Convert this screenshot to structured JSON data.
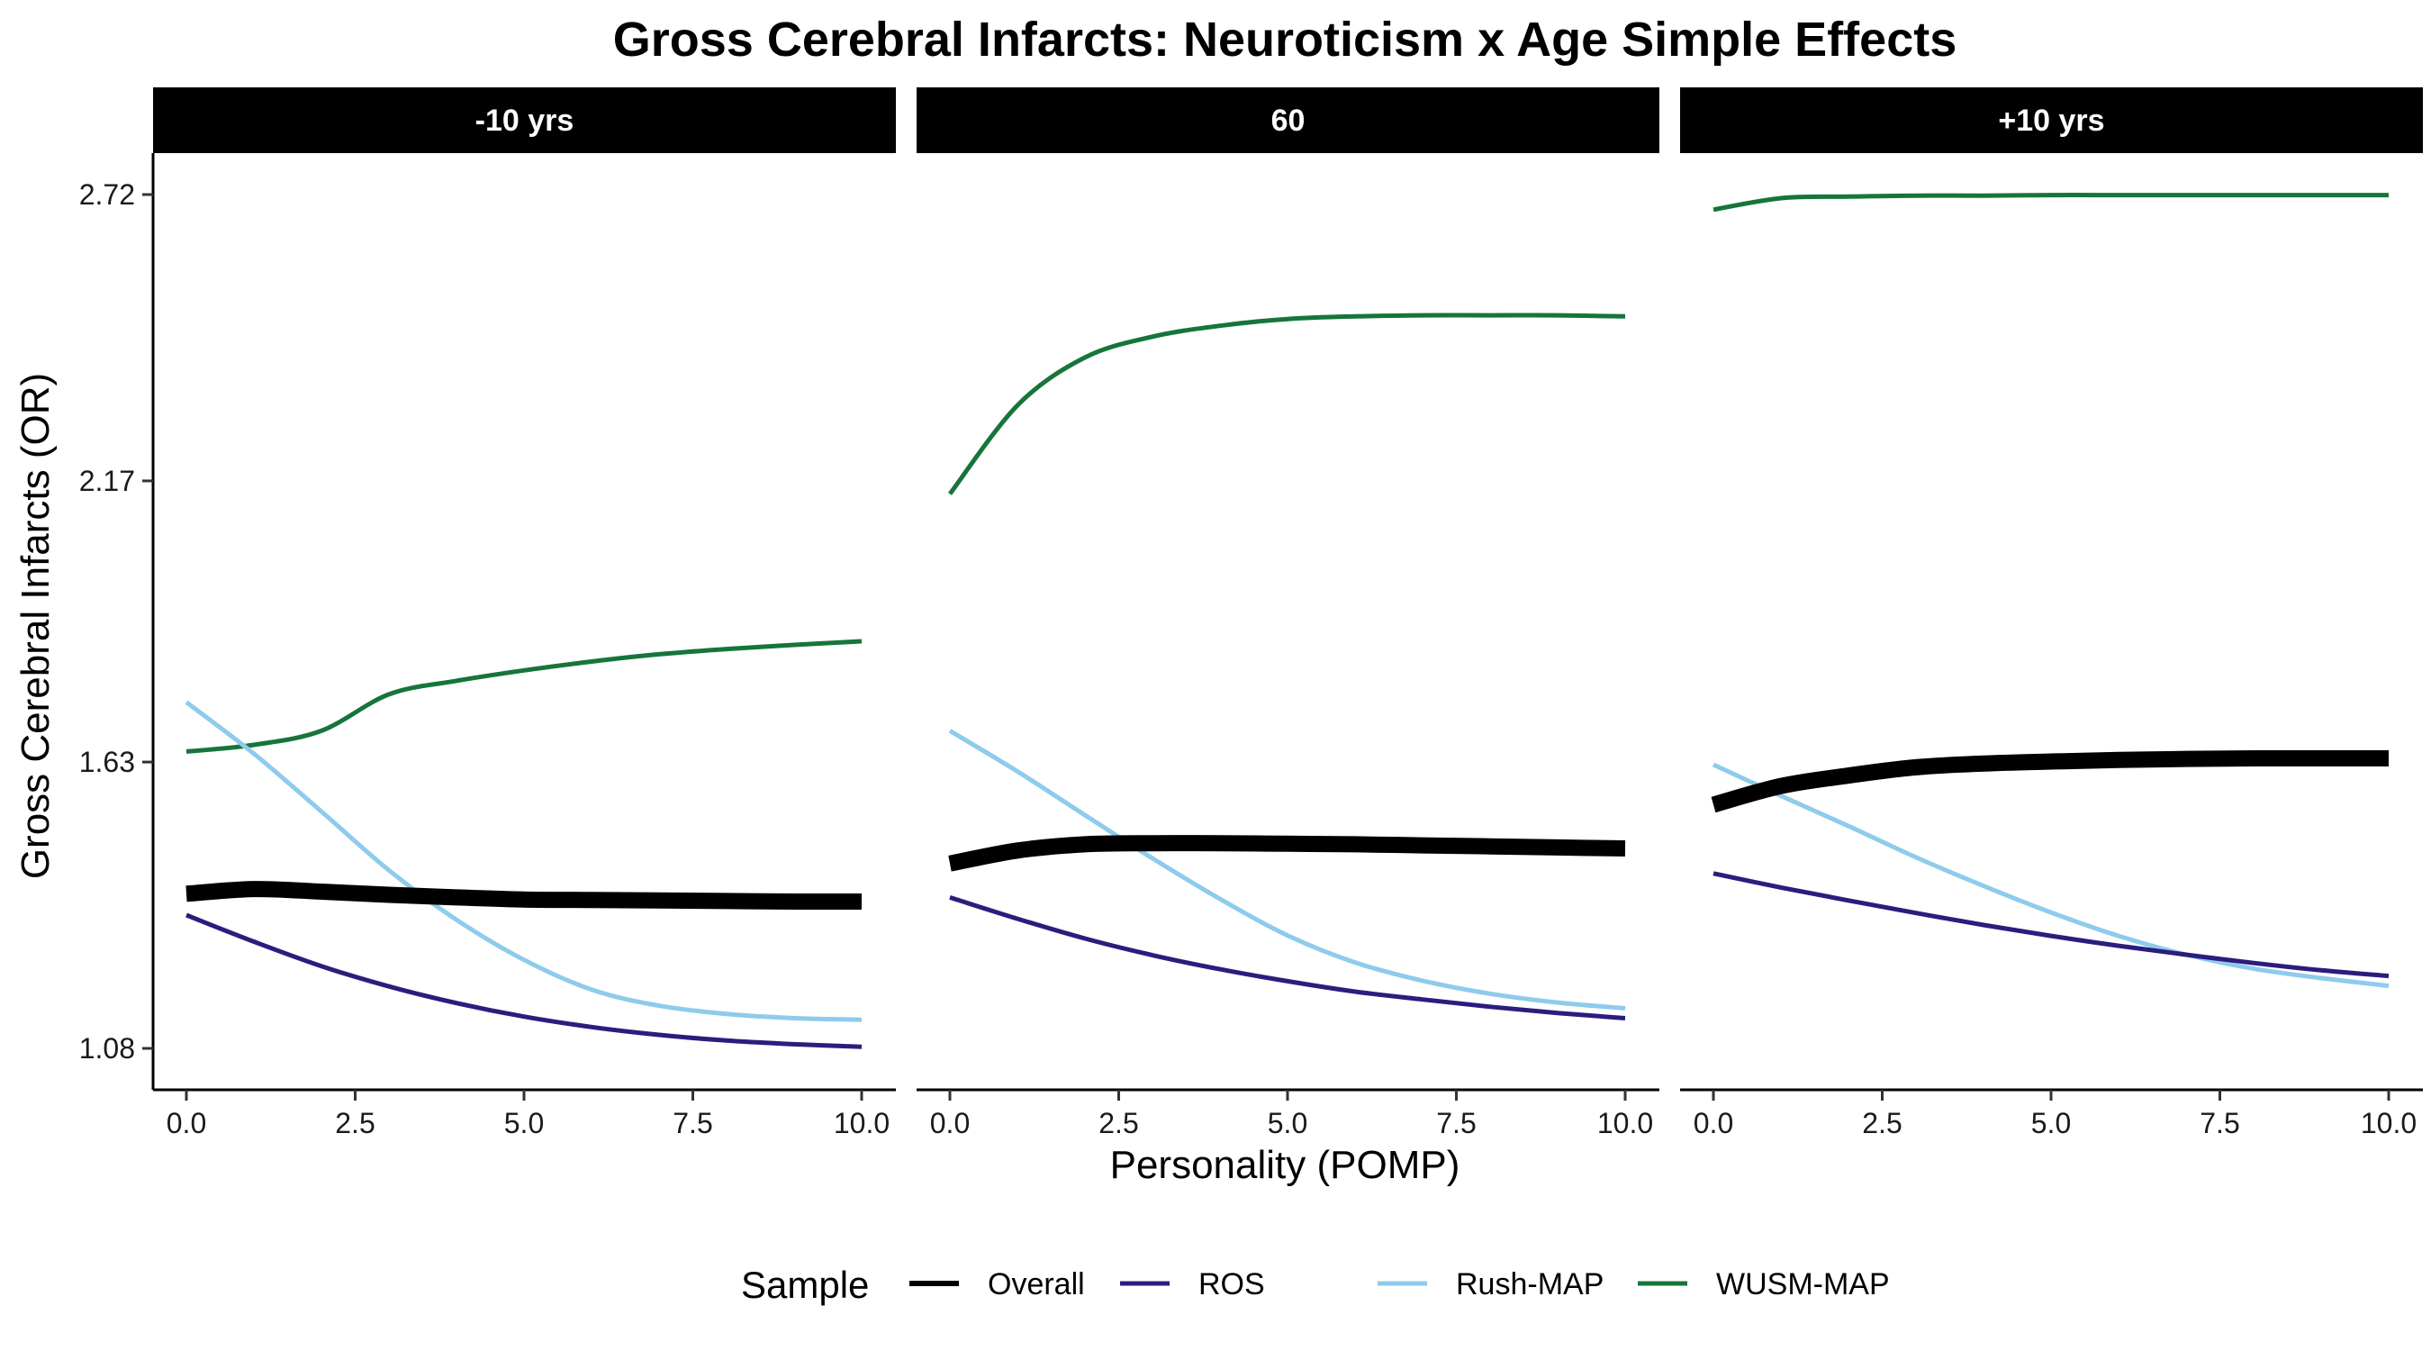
{
  "chart_data": {
    "type": "line",
    "title": "Gross Cerebral Infarcts: Neuroticism x Age Simple Effects",
    "xlabel": "Personality (POMP)",
    "ylabel": "Gross Cerebral Infarcts (OR)",
    "xlim": [
      0,
      10
    ],
    "ylim": [
      1.08,
      2.72
    ],
    "x_ticks": [
      "0.0",
      "2.5",
      "5.0",
      "7.5",
      "10.0"
    ],
    "y_ticks": [
      "1.08",
      "1.63",
      "2.17",
      "2.72"
    ],
    "x_tick_values": [
      0,
      2.5,
      5,
      7.5,
      10
    ],
    "y_tick_values": [
      1.08,
      1.63,
      2.17,
      2.72
    ],
    "grid": false,
    "legend": {
      "title": "Sample",
      "position": "bottom",
      "entries": [
        {
          "name": "Overall",
          "color": "#000000"
        },
        {
          "name": "ROS",
          "color": "#2b1d7e"
        },
        {
          "name": "Rush-MAP",
          "color": "#8ecbec"
        },
        {
          "name": "WUSM-MAP",
          "color": "#16753a"
        }
      ]
    },
    "x": [
      0,
      1,
      2,
      3,
      4,
      5,
      6,
      7,
      8,
      9,
      10
    ],
    "panels": [
      {
        "label": "-10 yrs",
        "series": [
          {
            "name": "Overall",
            "values": [
              1.377,
              1.386,
              1.381,
              1.375,
              1.37,
              1.366,
              1.365,
              1.364,
              1.363,
              1.362,
              1.362
            ]
          },
          {
            "name": "ROS",
            "values": [
              1.336,
              1.285,
              1.238,
              1.199,
              1.167,
              1.141,
              1.121,
              1.106,
              1.095,
              1.088,
              1.083
            ]
          },
          {
            "name": "Rush-MAP",
            "values": [
              1.745,
              1.646,
              1.535,
              1.422,
              1.327,
              1.25,
              1.193,
              1.162,
              1.146,
              1.138,
              1.135
            ]
          },
          {
            "name": "WUSM-MAP",
            "values": [
              1.65,
              1.663,
              1.69,
              1.76,
              1.786,
              1.806,
              1.823,
              1.837,
              1.847,
              1.855,
              1.862
            ]
          }
        ]
      },
      {
        "label": "60",
        "series": [
          {
            "name": "Overall",
            "values": [
              1.435,
              1.46,
              1.472,
              1.474,
              1.474,
              1.473,
              1.472,
              1.47,
              1.468,
              1.466,
              1.464
            ]
          },
          {
            "name": "ROS",
            "values": [
              1.37,
              1.329,
              1.291,
              1.259,
              1.232,
              1.209,
              1.189,
              1.174,
              1.16,
              1.148,
              1.138
            ]
          },
          {
            "name": "Rush-MAP",
            "values": [
              1.69,
              1.612,
              1.528,
              1.445,
              1.367,
              1.297,
              1.245,
              1.21,
              1.185,
              1.168,
              1.157
            ]
          },
          {
            "name": "WUSM-MAP",
            "values": [
              2.145,
              2.315,
              2.407,
              2.447,
              2.468,
              2.481,
              2.486,
              2.488,
              2.488,
              2.488,
              2.486
            ]
          }
        ]
      },
      {
        "label": "+10 yrs",
        "series": [
          {
            "name": "Overall",
            "values": [
              1.548,
              1.584,
              1.604,
              1.62,
              1.627,
              1.631,
              1.634,
              1.636,
              1.637,
              1.637,
              1.637
            ]
          },
          {
            "name": "ROS",
            "values": [
              1.416,
              1.389,
              1.364,
              1.34,
              1.317,
              1.296,
              1.277,
              1.26,
              1.244,
              1.23,
              1.219
            ]
          },
          {
            "name": "Rush-MAP",
            "values": [
              1.625,
              1.565,
              1.507,
              1.447,
              1.392,
              1.341,
              1.296,
              1.26,
              1.233,
              1.215,
              1.2
            ]
          },
          {
            "name": "WUSM-MAP",
            "values": [
              2.691,
              2.713,
              2.716,
              2.718,
              2.718,
              2.719,
              2.719,
              2.719,
              2.719,
              2.719,
              2.719
            ]
          }
        ]
      }
    ]
  }
}
